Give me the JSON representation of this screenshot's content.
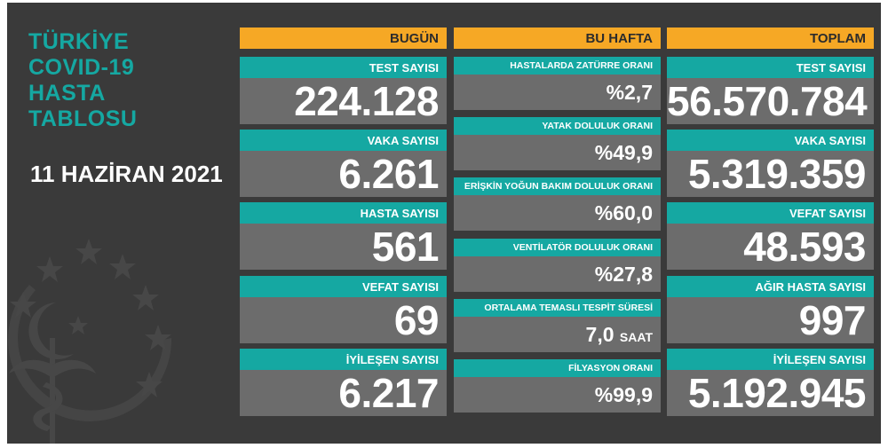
{
  "title_lines": [
    "TÜRKİYE",
    "COVID-19",
    "HASTA",
    "TABLOSU"
  ],
  "date": "11 HAZİRAN 2021",
  "columns": {
    "today": {
      "header": "BUGÜN",
      "cards": [
        {
          "label": "TEST SAYISI",
          "value": "224.128"
        },
        {
          "label": "VAKA SAYISI",
          "value": "6.261"
        },
        {
          "label": "HASTA SAYISI",
          "value": "561"
        },
        {
          "label": "VEFAT SAYISI",
          "value": "69"
        },
        {
          "label": "İYİLEŞEN SAYISI",
          "value": "6.217"
        }
      ]
    },
    "week": {
      "header": "BU HAFTA",
      "cards": [
        {
          "label": "HASTALARDA ZATÜRRE ORANI",
          "value": "%2,7",
          "unit": ""
        },
        {
          "label": "YATAK DOLULUK ORANI",
          "value": "%49,9",
          "unit": ""
        },
        {
          "label": "ERİŞKİN YOĞUN BAKIM DOLULUK ORANI",
          "value": "%60,0",
          "unit": ""
        },
        {
          "label": "VENTİLATÖR DOLULUK ORANI",
          "value": "%27,8",
          "unit": ""
        },
        {
          "label": "ORTALAMA TEMASLI TESPİT SÜRESİ",
          "value": "7,0",
          "unit": "SAAT"
        },
        {
          "label": "FİLYASYON ORANI",
          "value": "%99,9",
          "unit": ""
        }
      ]
    },
    "total": {
      "header": "TOPLAM",
      "cards": [
        {
          "label": "TEST SAYISI",
          "value": "56.570.784"
        },
        {
          "label": "VAKA SAYISI",
          "value": "5.319.359"
        },
        {
          "label": "VEFAT SAYISI",
          "value": "48.593"
        },
        {
          "label": "AĞIR HASTA SAYISI",
          "value": "997"
        },
        {
          "label": "İYİLEŞEN SAYISI",
          "value": "5.192.945"
        }
      ]
    }
  },
  "colors": {
    "background": "#3a3a3a",
    "accent": "#15a8a2",
    "header": "#f6a825",
    "card": "#6c6c6c"
  },
  "icons": [
    "emblem-crescent-star-caduceus-icon"
  ]
}
